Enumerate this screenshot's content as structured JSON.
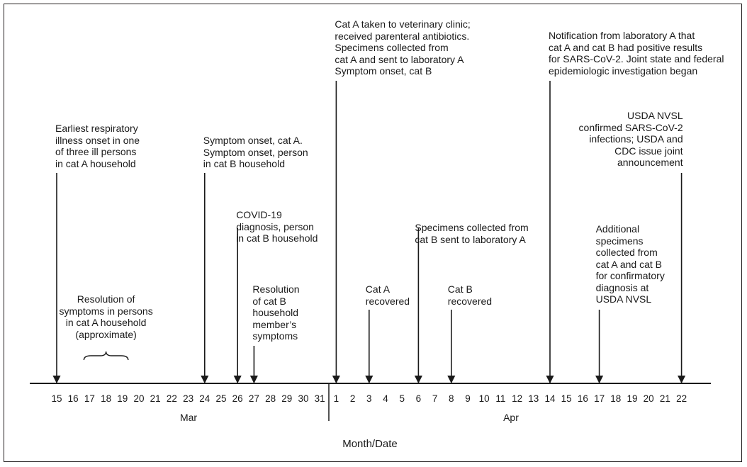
{
  "chart_data": {
    "type": "timeline",
    "xlabel": "Month/Date",
    "months": [
      {
        "name": "Mar",
        "dates": [
          15,
          16,
          17,
          18,
          19,
          20,
          21,
          22,
          23,
          24,
          25,
          26,
          27,
          28,
          29,
          30,
          31
        ]
      },
      {
        "name": "Apr",
        "dates": [
          1,
          2,
          3,
          4,
          5,
          6,
          7,
          8,
          9,
          10,
          11,
          12,
          13,
          14,
          15,
          16,
          17,
          18,
          19,
          20,
          21,
          22
        ]
      }
    ],
    "events": [
      {
        "id": "e-mar15",
        "month": "Mar",
        "date": 15,
        "lines": [
          "Earliest respiratory",
          "illness onset in one",
          "of three ill persons",
          "in cat A household"
        ]
      },
      {
        "id": "e-mar24",
        "month": "Mar",
        "date": 24,
        "lines": [
          "Symptom onset, cat A.",
          "Symptom onset, person",
          "in cat B household"
        ]
      },
      {
        "id": "e-mar26",
        "month": "Mar",
        "date": 26,
        "lines": [
          "COVID-19",
          "diagnosis, person",
          "in cat B household"
        ]
      },
      {
        "id": "e-mar27",
        "month": "Mar",
        "date": 27,
        "lines": [
          "Resolution",
          "of cat B",
          "household",
          "member’s",
          "symptoms"
        ]
      },
      {
        "id": "e-apr1",
        "month": "Apr",
        "date": 1,
        "lines": [
          "Cat A taken to veterinary clinic;",
          "received parenteral antibiotics.",
          "Specimens collected from",
          "cat A and sent to laboratory A",
          "Symptom onset, cat B"
        ]
      },
      {
        "id": "e-apr3",
        "month": "Apr",
        "date": 3,
        "lines": [
          "Cat A",
          "recovered"
        ]
      },
      {
        "id": "e-apr6",
        "month": "Apr",
        "date": 6,
        "lines": [
          "Specimens collected from",
          "cat B sent to laboratory A"
        ]
      },
      {
        "id": "e-apr8",
        "month": "Apr",
        "date": 8,
        "lines": [
          "Cat B",
          "recovered"
        ]
      },
      {
        "id": "e-apr14",
        "month": "Apr",
        "date": 14,
        "lines": [
          "Notification from laboratory A that",
          "cat A and cat B had positive results",
          "for SARS-CoV-2. Joint state and federal",
          "epidemiologic investigation began"
        ]
      },
      {
        "id": "e-apr17",
        "month": "Apr",
        "date": 17,
        "lines": [
          "Additional",
          "specimens",
          "collected from",
          "cat A and cat B",
          "for confirmatory",
          "diagnosis at",
          "USDA NVSL"
        ]
      },
      {
        "id": "e-apr22",
        "month": "Apr",
        "date": 22,
        "lines": [
          "USDA NVSL",
          "confirmed SARS-CoV-2",
          "infections; USDA and",
          "CDC issue joint",
          "announcement"
        ]
      }
    ],
    "ranges": [
      {
        "id": "r-mar17-19",
        "month": "Mar",
        "start": 17,
        "end": 19,
        "lines": [
          "Resolution of",
          "symptoms in persons",
          "in cat A household",
          "(approximate)"
        ]
      }
    ]
  }
}
